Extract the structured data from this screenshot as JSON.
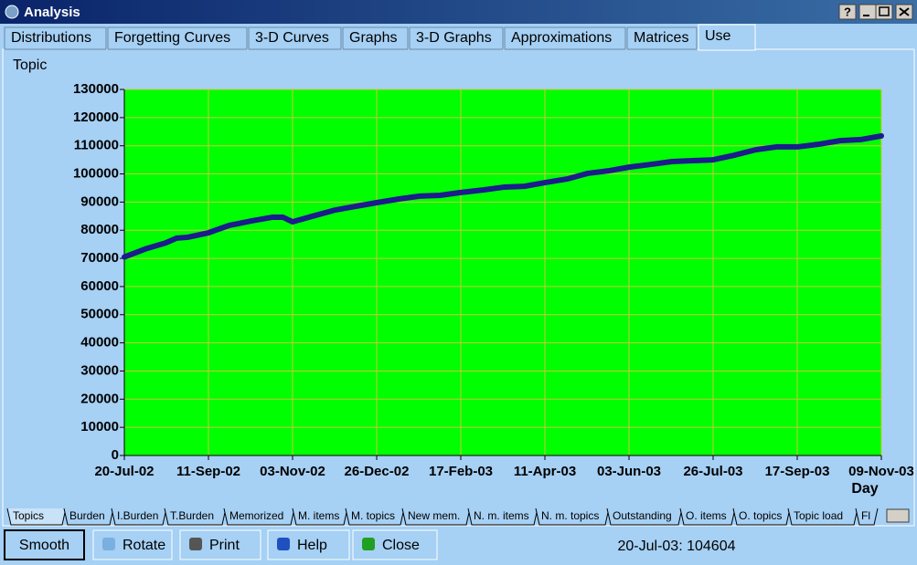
{
  "window": {
    "title": "Analysis",
    "help_button": "?"
  },
  "tabs": [
    "Distributions",
    "Forgetting Curves",
    "3-D Curves",
    "Graphs",
    "3-D Graphs",
    "Approximations",
    "Matrices",
    "Use"
  ],
  "chart_data": {
    "type": "line",
    "y_label": "Topic",
    "x_label": "Day",
    "x": [
      0,
      13,
      26,
      33,
      40,
      53,
      66,
      80,
      93,
      100,
      106,
      120,
      133,
      146,
      159,
      173,
      186,
      199,
      212,
      226,
      239,
      252,
      265,
      279,
      292,
      305,
      318,
      332,
      345,
      358,
      371,
      384,
      398,
      411,
      424,
      437,
      451,
      464,
      477
    ],
    "series": [
      {
        "color": "#1c1c8c",
        "values": [
          70500,
          73300,
          75500,
          77200,
          77500,
          79100,
          81700,
          83300,
          84600,
          84600,
          83000,
          85200,
          87200,
          88500,
          89800,
          91100,
          92100,
          92400,
          93400,
          94300,
          95300,
          95600,
          96900,
          98200,
          100200,
          101100,
          102400,
          103400,
          104400,
          104700,
          105000,
          106600,
          108600,
          109600,
          109600,
          110500,
          111800,
          112200,
          113500
        ]
      }
    ],
    "xlim": [
      0,
      477
    ],
    "xticks": [
      {
        "value": 0,
        "label": "20-Jul-02"
      },
      {
        "value": 53,
        "label": "11-Sep-02"
      },
      {
        "value": 106,
        "label": "03-Nov-02"
      },
      {
        "value": 159,
        "label": "26-Dec-02"
      },
      {
        "value": 212,
        "label": "17-Feb-03"
      },
      {
        "value": 265,
        "label": "11-Apr-03"
      },
      {
        "value": 318,
        "label": "03-Jun-03"
      },
      {
        "value": 371,
        "label": "26-Jul-03"
      },
      {
        "value": 424,
        "label": "17-Sep-03"
      },
      {
        "value": 477,
        "label": "09-Nov-03"
      }
    ],
    "ylim": [
      0,
      130000
    ],
    "yticks": [
      0,
      10000,
      20000,
      30000,
      40000,
      50000,
      60000,
      70000,
      80000,
      90000,
      100000,
      110000,
      120000,
      130000
    ],
    "grid": true,
    "background": "#00ff00",
    "grid_color": "#c8c83c"
  },
  "bottom_tabs": [
    "Topics",
    "Burden",
    "I.Burden",
    "T.Burden",
    "Memorized",
    "M. items",
    "M. topics",
    "New mem.",
    "N. m. items",
    "N. m. topics",
    "Outstanding",
    "O. items",
    "O. topics",
    "Topic load",
    "Fl"
  ],
  "buttons": [
    "Smooth",
    "Rotate",
    "Print",
    "Help",
    "Close"
  ],
  "status": "20-Jul-03: 104604"
}
